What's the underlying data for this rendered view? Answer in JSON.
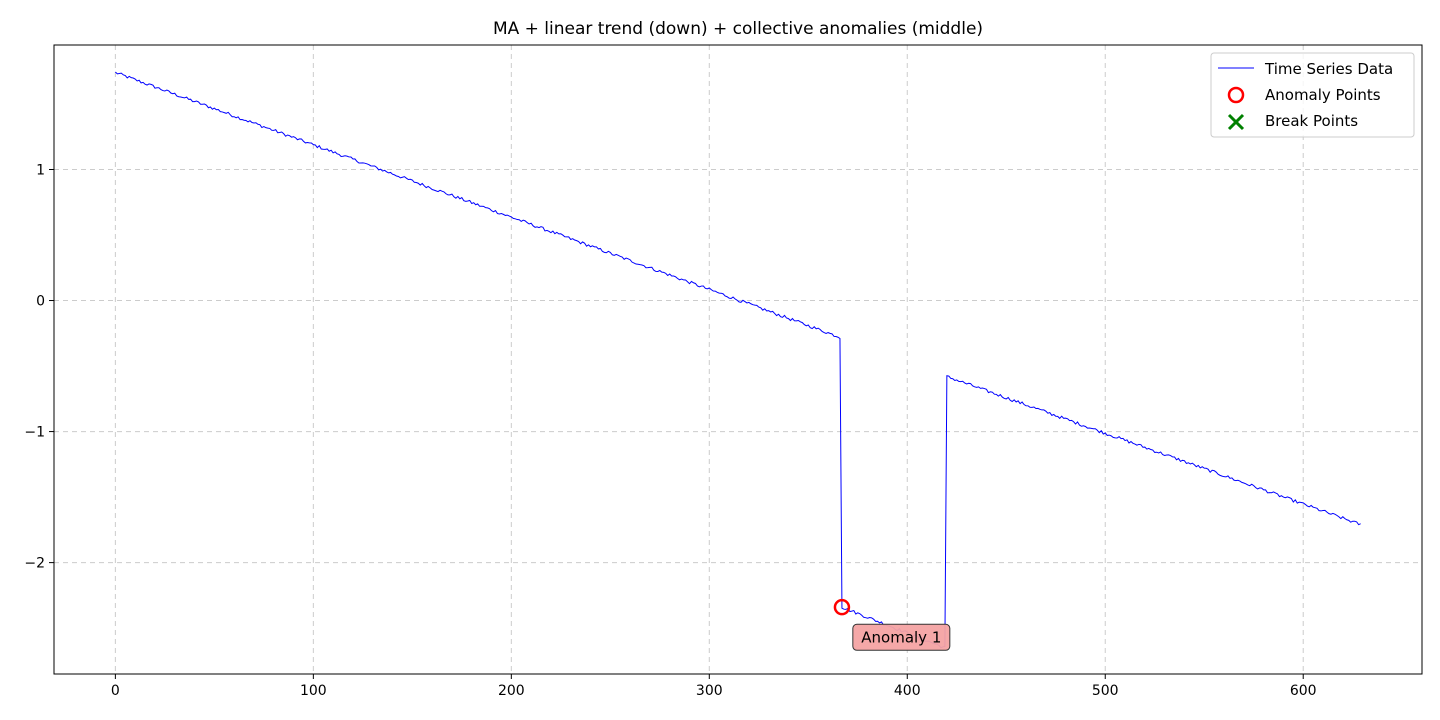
{
  "chart_data": {
    "type": "line",
    "title": "MA + linear trend (down) + collective anomalies (middle)",
    "xlabel": "",
    "ylabel": "",
    "xlim": [
      -31,
      660
    ],
    "ylim": [
      -2.85,
      1.95
    ],
    "xticks": [
      0,
      100,
      200,
      300,
      400,
      500,
      600
    ],
    "yticks": [
      -2,
      -1,
      0,
      1
    ],
    "xtick_labels": [
      "0",
      "100",
      "200",
      "300",
      "400",
      "500",
      "600"
    ],
    "ytick_labels": [
      "−2",
      "−1",
      "0",
      "1"
    ],
    "grid": true,
    "legend_position": "top-right",
    "colors": {
      "series": "#0000ff",
      "anomaly": "#ff0000",
      "break": "#008000",
      "grid": "#cccccc",
      "annotation_fill": "#f4a3a3",
      "annotation_border": "#333333"
    },
    "series": [
      {
        "name": "Time Series Data",
        "segments": [
          {
            "x_start": 0,
            "x_end": 366,
            "y_start": 1.74,
            "y_end": -0.28
          },
          {
            "x_start": 367,
            "x_end": 419,
            "y_start": -2.34,
            "y_end": -2.65
          },
          {
            "x_start": 420,
            "x_end": 629,
            "y_start": -0.58,
            "y_end": -1.71
          }
        ],
        "noise": 0.012
      }
    ],
    "anomaly_points": [
      {
        "x": 367,
        "y": -2.34
      }
    ],
    "break_points": [],
    "legend": [
      "Time Series Data",
      "Anomaly Points",
      "Break Points"
    ],
    "annotations": [
      {
        "text": "Anomaly 1",
        "x": 397,
        "y": -2.57
      }
    ]
  }
}
